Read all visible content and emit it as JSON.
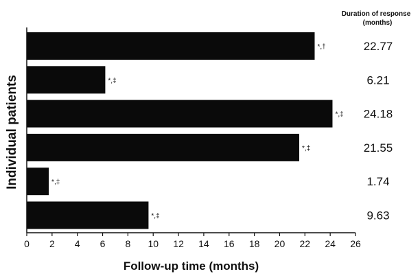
{
  "chart_data": {
    "type": "bar",
    "orientation": "horizontal",
    "xlabel": "Follow-up time (months)",
    "ylabel": "Individual patients",
    "xlim": [
      0,
      26
    ],
    "xticks": [
      "0",
      "2",
      "4",
      "6",
      "8",
      "10",
      "12",
      "14",
      "16",
      "18",
      "20",
      "22",
      "24",
      "26"
    ],
    "grid": false,
    "bar_color": "#0a0a0a",
    "values": [
      22.77,
      6.21,
      24.18,
      21.55,
      1.74,
      9.63
    ],
    "annotations": [
      "*,†",
      "*,‡",
      "*,‡",
      "*,‡",
      "*,‡",
      "*,‡"
    ],
    "duration_column": {
      "header_line1": "Duration of response",
      "header_line2": "(months)",
      "values": [
        "22.77",
        "6.21",
        "24.18",
        "21.55",
        "1.74",
        "9.63"
      ]
    }
  }
}
